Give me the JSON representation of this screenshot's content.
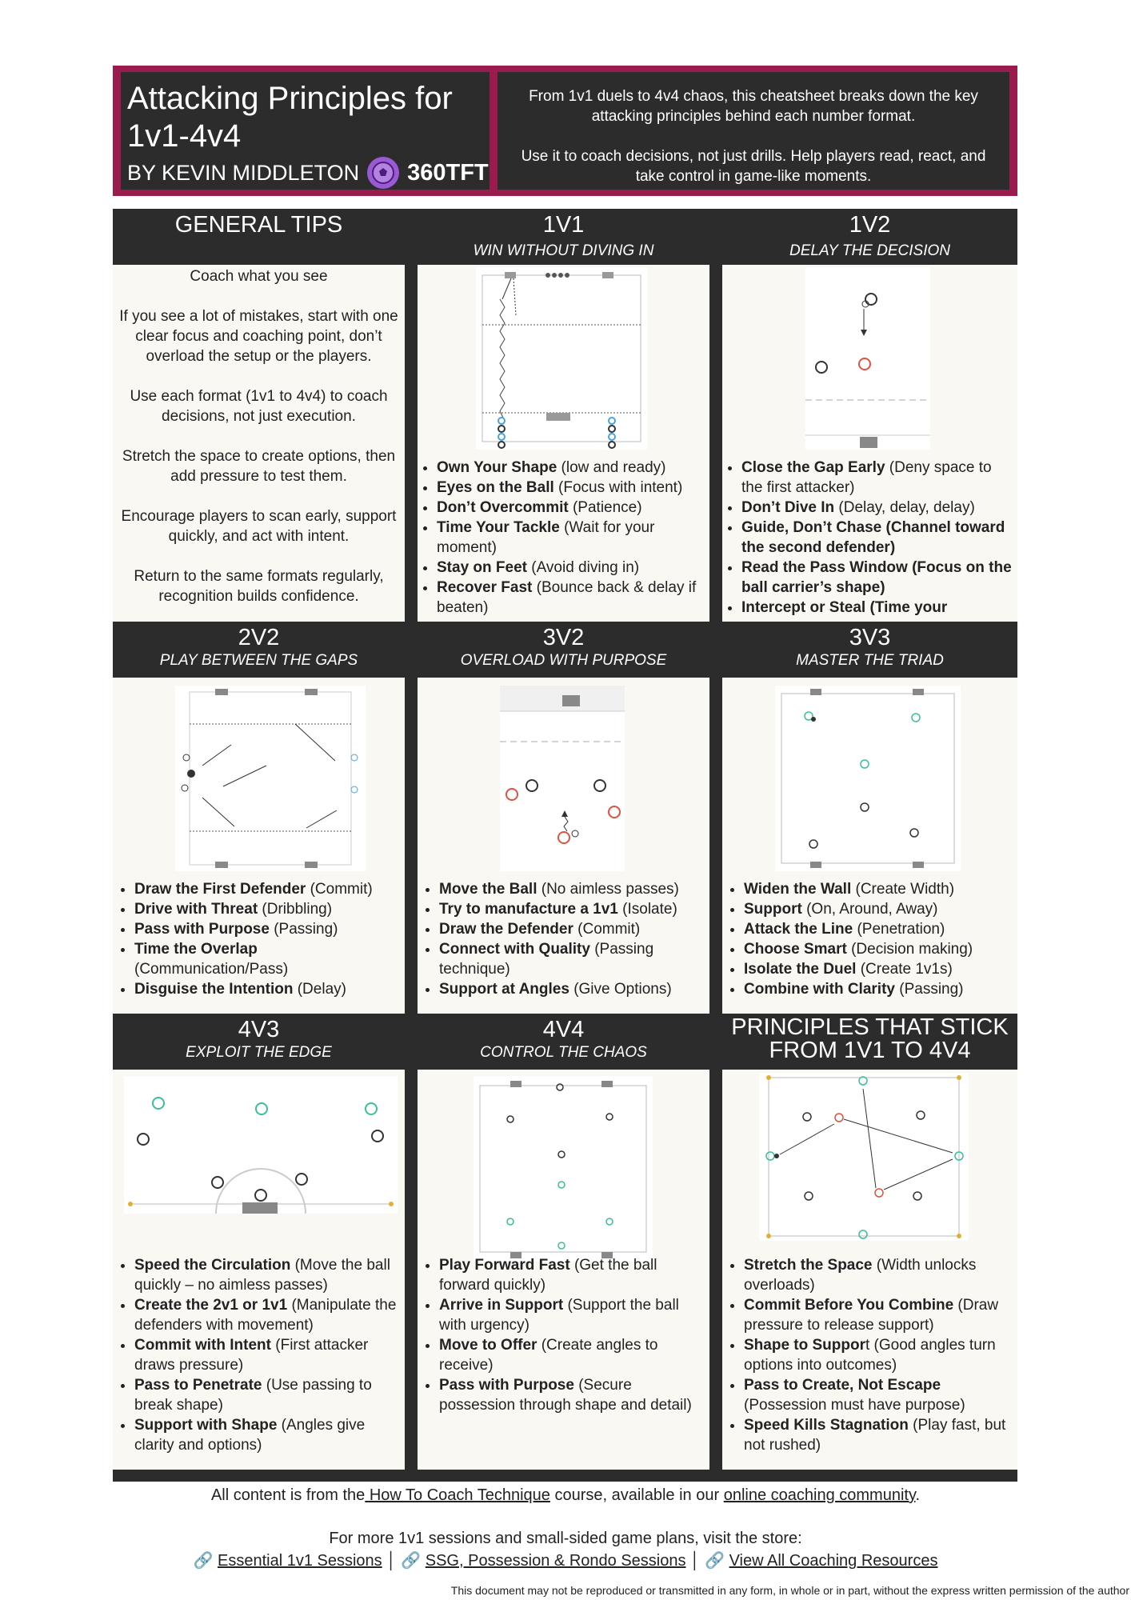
{
  "header": {
    "title": "Attacking Principles for 1v1-4v4",
    "byline": "BY KEVIN MIDDLETON",
    "logo_text": "360TFT",
    "intro_1": "From 1v1 duels to 4v4 chaos, this cheatsheet breaks down the key attacking principles behind each number format.",
    "intro_2": "Use it to coach decisions, not just drills.  Help players read, react, and take control in game-like moments."
  },
  "general_tips": {
    "title": "GENERAL TIPS",
    "paragraphs": [
      "Coach what you see",
      "If you see a lot of mistakes, start with one clear focus and coaching point, don’t overload the setup or the players.",
      "Use each format (1v1 to 4v4) to coach decisions, not just execution.",
      "Stretch the space to create options, then add pressure to test them.",
      "Encourage players to scan early, support quickly, and act with intent.",
      "Return to the same formats regularly, recognition builds confidence."
    ]
  },
  "sections": [
    {
      "title": "1V1",
      "subtitle": "WIN WITHOUT DIVING IN",
      "bullets": [
        {
          "b": "Own Your Shape",
          "t": " (low and ready)"
        },
        {
          "b": "Eyes on the Ball",
          "t": " (Focus with intent)"
        },
        {
          "b": "Don’t Overcommit",
          "t": " (Patience)"
        },
        {
          "b": "Time Your Tackle",
          "t": " (Wait for your moment)"
        },
        {
          "b": "Stay on Feet",
          "t": " (Avoid diving in)"
        },
        {
          "b": "Recover Fast",
          "t": " (Bounce back & delay if beaten)"
        }
      ]
    },
    {
      "title": "1V2",
      "subtitle": "DELAY THE DECISION",
      "bullets": [
        {
          "b": "Close the Gap Early",
          "t": " (Deny space to the first attacker)"
        },
        {
          "b": "Don’t Dive In",
          "t": " (Delay, delay, delay)"
        },
        {
          "b": "Guide, Don’t Chase (Channel toward the second defender)",
          "t": ""
        },
        {
          "b": "Read the Pass Window (Focus on the ball carrier’s shape)",
          "t": ""
        },
        {
          "b": "Intercept or Steal (Time your",
          "t": ""
        }
      ]
    },
    {
      "title": "2V2",
      "subtitle": "PLAY BETWEEN THE GAPS",
      "bullets": [
        {
          "b": "Draw the First Defender",
          "t": " (Commit)"
        },
        {
          "b": "Drive with Threat",
          "t": " (Dribbling)"
        },
        {
          "b": "Pass with Purpose",
          "t": " (Passing)"
        },
        {
          "b": "Time the Overlap",
          "t": " (Communication/Pass)"
        },
        {
          "b": "Disguise the Intention",
          "t": " (Delay)"
        }
      ]
    },
    {
      "title": "3V2",
      "subtitle": "OVERLOAD WITH PURPOSE",
      "bullets": [
        {
          "b": "Move the Ball",
          "t": " (No aimless passes)"
        },
        {
          "b": "Try to manufacture a 1v1",
          "t": " (Isolate)"
        },
        {
          "b": "Draw the Defender",
          "t": " (Commit)"
        },
        {
          "b": "Connect with Quality",
          "t": " (Passing technique)"
        },
        {
          "b": "Support at Angles",
          "t": " (Give Options)"
        }
      ]
    },
    {
      "title": "3V3",
      "subtitle": "MASTER THE TRIAD",
      "bullets": [
        {
          "b": "Widen the Wall",
          "t": " (Create Width)"
        },
        {
          "b": "Support",
          "t": " (On, Around, Away)"
        },
        {
          "b": "Attack the Line",
          "t": " (Penetration)"
        },
        {
          "b": "Choose Smart",
          "t": " (Decision making)"
        },
        {
          "b": "Isolate the Duel",
          "t": " (Create 1v1s)"
        },
        {
          "b": "Combine with Clarity",
          "t": " (Passing)"
        }
      ]
    },
    {
      "title": "4V3",
      "subtitle": "EXPLOIT THE EDGE",
      "bullets": [
        {
          "b": "Speed the Circulation",
          "t": " (Move the ball quickly – no aimless passes)"
        },
        {
          "b": "Create the 2v1 or 1v1",
          "t": " (Manipulate the defenders with movement)"
        },
        {
          "b": "Commit with Intent",
          "t": " (First attacker draws pressure)"
        },
        {
          "b": "Pass to Penetrate",
          "t": " (Use passing to break shape)"
        },
        {
          "b": "Support with Shape",
          "t": " (Angles give clarity and options)"
        }
      ]
    },
    {
      "title": "4V4",
      "subtitle": "CONTROL THE CHAOS",
      "bullets": [
        {
          "b": "Play Forward Fast",
          "t": " (Get the ball forward quickly)"
        },
        {
          "b": "Arrive in Support",
          "t": " (Support the ball with urgency)"
        },
        {
          "b": "Move to Offer",
          "t": " (Create angles to receive)"
        },
        {
          "b": "Pass with Purpose",
          "t": " (Secure possession through shape and detail)"
        }
      ]
    },
    {
      "title": "PRINCIPLES THAT STICK FROM 1V1 TO 4V4",
      "subtitle": "",
      "bullets": [
        {
          "b": "Stretch the Space",
          "t": " (Width unlocks overloads)"
        },
        {
          "b": "Commit Before You Combine",
          "t": " (Draw pressure to release support)"
        },
        {
          "b": "Shape to Suppor",
          "t": "t (Good angles turn options into outcomes)"
        },
        {
          "b": "Pass to Create, Not Escape",
          "t": " (Possession must have purpose)"
        },
        {
          "b": "Speed Kills Stagnation",
          "t": " (Play fast, but not rushed)"
        }
      ]
    }
  ],
  "footer": {
    "line1_prefix": "All content is from the",
    "line1_link1": " How To Coach Technique",
    "line1_mid": " course, available in our ",
    "line1_link2": "online coaching community",
    "line1_suffix": ".",
    "line2": "For more 1v1 sessions and small-sided game plans, visit the store:",
    "links": [
      "Essential 1v1 Sessions",
      "SSG, Possession & Rondo Sessions",
      "View All Coaching Resources"
    ],
    "separator": "│",
    "fine_print": "This document may not be reproduced or transmitted in any form, in whole or in part, without the express written permission of the author"
  },
  "colors": {
    "dark": "#2c2c2c",
    "maroon": "#9a1c4e",
    "cream": "#faf8f2",
    "teal": "#3bbf9a",
    "red": "#e0513f",
    "blue": "#4aa3df"
  }
}
